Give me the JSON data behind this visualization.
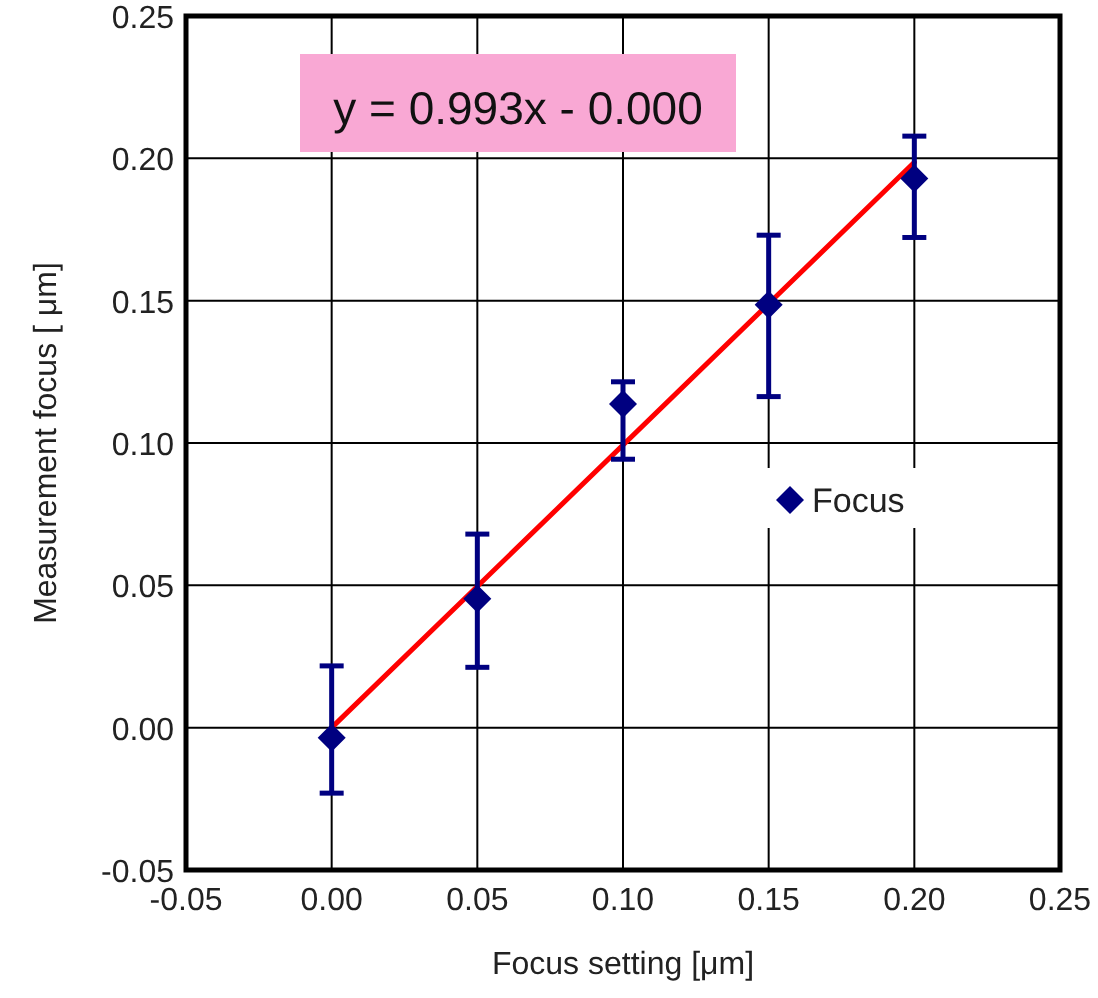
{
  "chart_data": {
    "type": "scatter",
    "xlabel": "Focus setting [μm]",
    "ylabel": "Measurement focus [ μm]",
    "annotations": [
      "y = 0.993x - 0.000"
    ],
    "xlim": [
      -0.05,
      0.25
    ],
    "xticks": [
      {
        "value": -0.05,
        "label": "-0.05"
      },
      {
        "value": 0,
        "label": "0.00"
      },
      {
        "value": 0.05,
        "label": "0.05"
      },
      {
        "value": 0.1,
        "label": "0.10"
      },
      {
        "value": 0.15,
        "label": "0.15"
      },
      {
        "value": 0.2,
        "label": "0.20"
      },
      {
        "value": 0.25,
        "label": "0.25"
      }
    ],
    "ylim": [
      -0.05,
      0.25
    ],
    "yticks": [
      {
        "value": -0.05,
        "label": "-0.05"
      },
      {
        "value": 0,
        "label": "0.00"
      },
      {
        "value": 0.05,
        "label": "0.05"
      },
      {
        "value": 0.1,
        "label": "0.10"
      },
      {
        "value": 0.15,
        "label": "0.15"
      },
      {
        "value": 0.2,
        "label": "0.20"
      },
      {
        "value": 0.25,
        "label": "0.25"
      }
    ],
    "grid": true,
    "legend": "right",
    "marker": "diamond",
    "series": [
      {
        "type": "line",
        "color": "#ff0000",
        "x": [
          0,
          0.2
        ],
        "values": [
          0,
          0.1986
        ],
        "marker": "none"
      },
      {
        "name": "Focus",
        "color": "#000080",
        "x": [
          0,
          0.05,
          0.1,
          0.15,
          0.2
        ],
        "values": [
          -0.0035,
          0.0453,
          0.1137,
          0.1486,
          0.1929
        ],
        "errors": [
          [
            -0.023,
            0.0217
          ],
          [
            0.0212,
            0.068
          ],
          [
            0.0943,
            0.1215
          ],
          [
            0.1163,
            0.173
          ],
          [
            0.1722,
            0.2078
          ]
        ]
      }
    ]
  }
}
